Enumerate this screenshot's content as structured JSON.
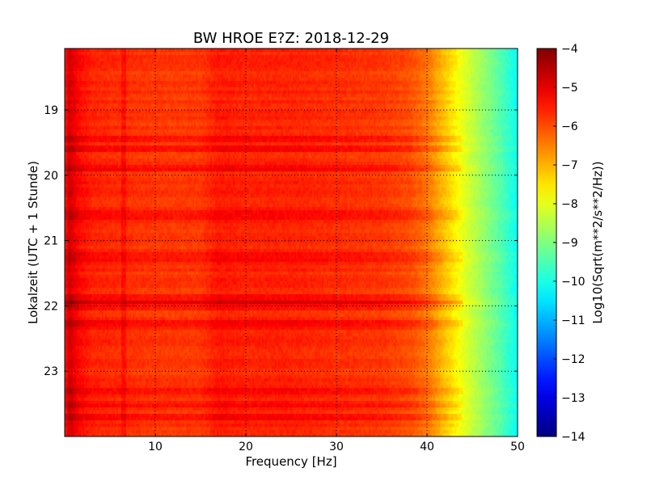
{
  "chart_data": {
    "type": "heatmap",
    "title": "BW HROE E?Z: 2018-12-29",
    "xlabel": "Frequency [Hz]",
    "ylabel": "Lokalzeit (UTC + 1 Stunde)",
    "xlim": [
      0,
      50
    ],
    "ylim": [
      24,
      18.06
    ],
    "x_ticks": [
      10,
      20,
      30,
      40,
      50
    ],
    "y_ticks": [
      19,
      20,
      21,
      22,
      23
    ],
    "grid": true,
    "colormap": "jet",
    "colorbar": {
      "label": "Log10(Sqrt(m**2/s**2/Hz))",
      "range": [
        -14,
        -4
      ],
      "ticks": [
        -4,
        -5,
        -6,
        -7,
        -8,
        -9,
        -10,
        -11,
        -12,
        -13,
        -14
      ]
    },
    "spectrum_profile": {
      "frequency_hz": [
        0,
        0.5,
        1.5,
        3,
        10,
        15,
        17,
        20,
        25,
        30,
        35,
        38,
        40,
        42,
        44,
        46,
        48,
        50
      ],
      "log10_amplitude": [
        -5.6,
        -4.8,
        -5.3,
        -5.6,
        -5.8,
        -5.8,
        -5.5,
        -5.6,
        -5.6,
        -5.7,
        -5.8,
        -6.0,
        -6.4,
        -7.2,
        -8.0,
        -8.7,
        -9.4,
        -10.2
      ]
    },
    "strong_rows_hours": [
      19.45,
      19.6,
      19.9,
      20.6,
      21.25,
      21.9,
      22.0,
      22.3,
      23.3,
      23.5,
      23.7
    ]
  }
}
